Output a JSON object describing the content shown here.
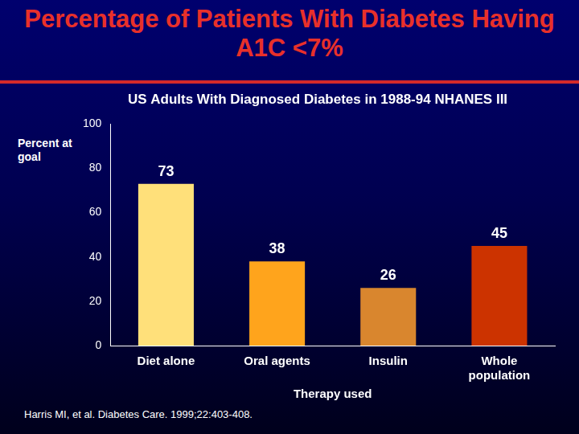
{
  "chart_data": {
    "type": "bar",
    "title": "Percentage of Patients With Diabetes Having A1C <7%",
    "subtitle": "US Adults With Diagnosed Diabetes in 1988-94 NHANES III",
    "y_label": "Percent at goal",
    "x_label": "Therapy used",
    "categories": [
      "Diet alone",
      "Oral agents",
      "Insulin",
      "Whole population"
    ],
    "values": [
      73,
      38,
      26,
      45
    ],
    "colors": [
      "#ffe07a",
      "#ffa41c",
      "#d9862e",
      "#cc3300"
    ],
    "ylim": [
      0,
      100
    ],
    "yticks": [
      0,
      20,
      40,
      60,
      80,
      100
    ],
    "grid": false,
    "data_labels": true,
    "annotations": [
      "Harris MI, et al. Diabetes Care. 1999;22:403-408."
    ]
  }
}
